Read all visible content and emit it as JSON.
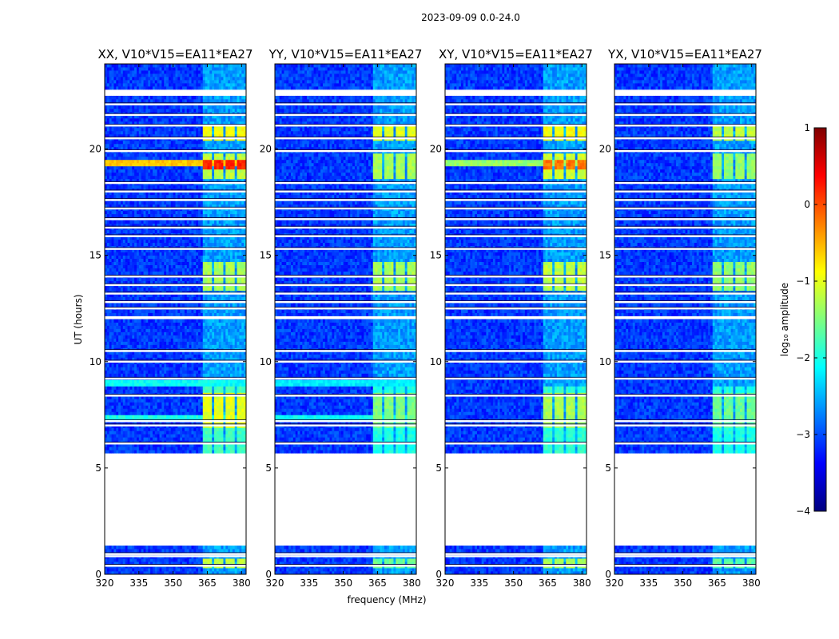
{
  "chart_data": {
    "type": "heatmap",
    "suptitle": "2023-09-09 0.0-24.0",
    "xlabel": "frequency (MHz)",
    "ylabel": "UT (hours)",
    "xlim": [
      320,
      382
    ],
    "ylim": [
      0,
      24
    ],
    "xticks": [
      320,
      335,
      350,
      365,
      380
    ],
    "yticks": [
      0,
      5,
      10,
      15,
      20
    ],
    "colorbar": {
      "label": "log₁₀ amplitude",
      "range": [
        -4,
        1
      ],
      "ticks": [
        "1",
        "0",
        "−1",
        "−2",
        "−3",
        "−4"
      ],
      "tick_values": [
        1,
        0,
        -1,
        -2,
        -3,
        -4
      ],
      "colormap": "jet",
      "colors": [
        "#00007f",
        "#0000ff",
        "#007fff",
        "#00ffff",
        "#7fff7f",
        "#ffff00",
        "#ff7f00",
        "#ff0000",
        "#7f0000"
      ]
    },
    "blank_time_ranges": [
      [
        1.35,
        5.65
      ],
      [
        12.05,
        12.15
      ],
      [
        22.55,
        22.75
      ]
    ],
    "flag_rows": [
      0.4,
      0.85,
      0.95,
      6.15,
      7.0,
      7.2,
      8.4,
      9.2,
      10.0,
      10.5,
      12.5,
      12.8,
      13.2,
      13.6,
      14.0,
      15.3,
      15.9,
      16.3,
      16.7,
      17.2,
      17.6,
      18.0,
      18.4,
      19.9,
      20.5,
      21.1,
      21.6,
      22.1
    ],
    "rfi_sub_bands_mhz": [
      [
        363,
        367
      ],
      [
        368,
        372
      ],
      [
        373,
        377
      ],
      [
        378,
        382
      ]
    ],
    "panels": [
      {
        "title": "XX, V10*V15=EA11*EA27",
        "show_yticks": true,
        "background_level": -3.1,
        "events": [
          {
            "t": [
              0.3,
              0.8
            ],
            "level": -1.2
          },
          {
            "t": [
              5.7,
              8.8
            ],
            "level": -1.8
          },
          {
            "t": [
              6.9,
              8.6
            ],
            "level": -1.0
          },
          {
            "t": [
              13.3,
              14.7
            ],
            "level": -1.3
          },
          {
            "t": [
              18.6,
              19.8
            ],
            "level": -1.2
          },
          {
            "t": [
              19.0,
              19.5
            ],
            "level": 0.2
          },
          {
            "t": [
              20.4,
              21.1
            ],
            "level": -0.9
          }
        ],
        "broadband_lines": [
          {
            "t": 19.3,
            "level": -0.6
          },
          {
            "t": 7.35,
            "level": -2.0
          },
          {
            "t": 9.0,
            "level": -2.1
          }
        ]
      },
      {
        "title": "YY, V10*V15=EA11*EA27",
        "show_yticks": true,
        "background_level": -3.1,
        "events": [
          {
            "t": [
              0.3,
              0.8
            ],
            "level": -1.6
          },
          {
            "t": [
              5.7,
              8.8
            ],
            "level": -2.0
          },
          {
            "t": [
              6.9,
              8.6
            ],
            "level": -1.5
          },
          {
            "t": [
              13.3,
              14.7
            ],
            "level": -1.3
          },
          {
            "t": [
              18.6,
              19.8
            ],
            "level": -1.3
          },
          {
            "t": [
              20.4,
              21.1
            ],
            "level": -1.0
          }
        ],
        "broadband_lines": [
          {
            "t": 7.35,
            "level": -2.1
          },
          {
            "t": 9.0,
            "level": -2.2
          }
        ]
      },
      {
        "title": "XY, V10*V15=EA11*EA27",
        "show_yticks": true,
        "background_level": -3.1,
        "events": [
          {
            "t": [
              0.3,
              0.8
            ],
            "level": -1.3
          },
          {
            "t": [
              5.7,
              8.8
            ],
            "level": -1.9
          },
          {
            "t": [
              6.9,
              8.6
            ],
            "level": -1.3
          },
          {
            "t": [
              13.3,
              14.7
            ],
            "level": -1.2
          },
          {
            "t": [
              18.6,
              19.8
            ],
            "level": -1.1
          },
          {
            "t": [
              19.0,
              19.5
            ],
            "level": -0.2
          },
          {
            "t": [
              20.4,
              21.1
            ],
            "level": -0.9
          }
        ],
        "broadband_lines": [
          {
            "t": 19.3,
            "level": -1.4
          }
        ]
      },
      {
        "title": "YX, V10*V15=EA11*EA27",
        "show_yticks": true,
        "background_level": -3.1,
        "events": [
          {
            "t": [
              0.3,
              0.8
            ],
            "level": -1.7
          },
          {
            "t": [
              5.7,
              8.8
            ],
            "level": -2.0
          },
          {
            "t": [
              6.9,
              8.6
            ],
            "level": -1.6
          },
          {
            "t": [
              13.3,
              14.7
            ],
            "level": -1.4
          },
          {
            "t": [
              18.6,
              19.8
            ],
            "level": -1.4
          },
          {
            "t": [
              20.4,
              21.1
            ],
            "level": -1.2
          }
        ],
        "broadband_lines": []
      }
    ]
  }
}
